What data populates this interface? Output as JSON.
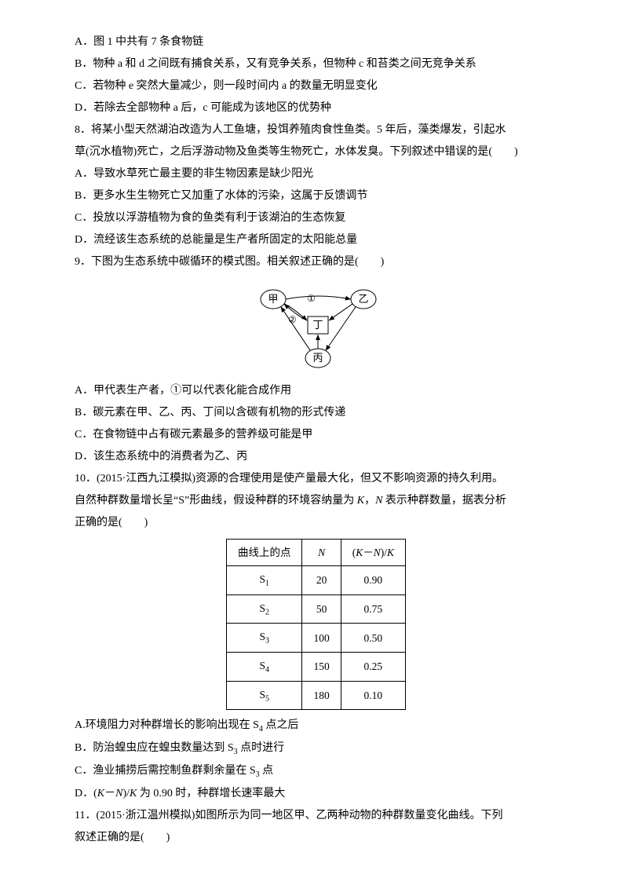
{
  "q7": {
    "A": "A．图 1 中共有 7 条食物链",
    "B": "B．物种 a 和 d 之间既有捕食关系，又有竞争关系，但物种 c 和苔类之间无竞争关系",
    "C": "C．若物种 e 突然大量减少，则一段时间内 a 的数量无明显变化",
    "D": "D．若除去全部物种 a 后，c 可能成为该地区的优势种"
  },
  "q8": {
    "stem1": "8．将某小型天然湖泊改造为人工鱼塘，投饵养殖肉食性鱼类。5 年后，藻类爆发，引起水",
    "stem2": "草(沉水植物)死亡，之后浮游动物及鱼类等生物死亡，水体发臭。下列叙述中错误的是(　　)",
    "A": "A．导致水草死亡最主要的非生物因素是缺少阳光",
    "B": "B．更多水生生物死亡又加重了水体的污染，这属于反馈调节",
    "C": "C．投放以浮游植物为食的鱼类有利于该湖泊的生态恢复",
    "D": "D．流经该生态系统的总能量是生产者所固定的太阳能总量"
  },
  "q9": {
    "stem": "9．下图为生态系统中碳循环的模式图。相关叙述正确的是(　　)",
    "A": "A．甲代表生产者，①可以代表化能合成作用",
    "B": "B．碳元素在甲、乙、丙、丁间以含碳有机物的形式传递",
    "C": "C．在食物链中占有碳元素最多的营养级可能是甲",
    "D": "D．该生态系统中的消费者为乙、丙",
    "diagram": {
      "nodes": {
        "jia": "甲",
        "yi": "乙",
        "bing": "丙",
        "ding": "丁"
      },
      "labels": {
        "one": "①",
        "two": "②"
      },
      "width": 180,
      "height": 120,
      "nodeStroke": "#000",
      "nodeFill": "#fff",
      "txtColor": "#000",
      "arrowColor": "#000"
    }
  },
  "q10": {
    "stem1": "10．(2015·江西九江模拟)资源的合理使用是使产量最大化，但又不影响资源的持久利用。",
    "stem2_a": "自然种群数量增长呈“S”形曲线，假设种群的环境容纳量为 ",
    "stem2_b": "K",
    "stem2_c": "，",
    "stem2_d": "N",
    "stem2_e": " 表示种群数量，据表分析",
    "stem3": "正确的是(　　)",
    "table": {
      "h1": "曲线上的点",
      "h2": "N",
      "h3a": "(",
      "h3b": "K",
      "h3c": "－",
      "h3d": "N",
      "h3e": ")/",
      "h3f": "K",
      "rows": [
        {
          "p": "S",
          "s": "1",
          "n": "20",
          "r": "0.90"
        },
        {
          "p": "S",
          "s": "2",
          "n": "50",
          "r": "0.75"
        },
        {
          "p": "S",
          "s": "3",
          "n": "100",
          "r": "0.50"
        },
        {
          "p": "S",
          "s": "4",
          "n": "150",
          "r": "0.25"
        },
        {
          "p": "S",
          "s": "5",
          "n": "180",
          "r": "0.10"
        }
      ]
    },
    "A_a": "A.环境阻力对种群增长的影响出现在 S",
    "A_s": "4",
    "A_b": " 点之后",
    "B_a": "B．防治蝗虫应在蝗虫数量达到 S",
    "B_s": "3",
    "B_b": " 点时进行",
    "C_a": "C．渔业捕捞后需控制鱼群剩余量在 S",
    "C_s": "3",
    "C_b": " 点",
    "D_a": "D．(",
    "D_b": "K",
    "D_c": "－",
    "D_d": "N",
    "D_e": ")/",
    "D_f": "K",
    "D_g": " 为 0.90 时，种群增长速率最大"
  },
  "q11": {
    "stem1": "11．(2015·浙江温州模拟)如图所示为同一地区甲、乙两种动物的种群数量变化曲线。下列",
    "stem2": "叙述正确的是(　　)"
  }
}
